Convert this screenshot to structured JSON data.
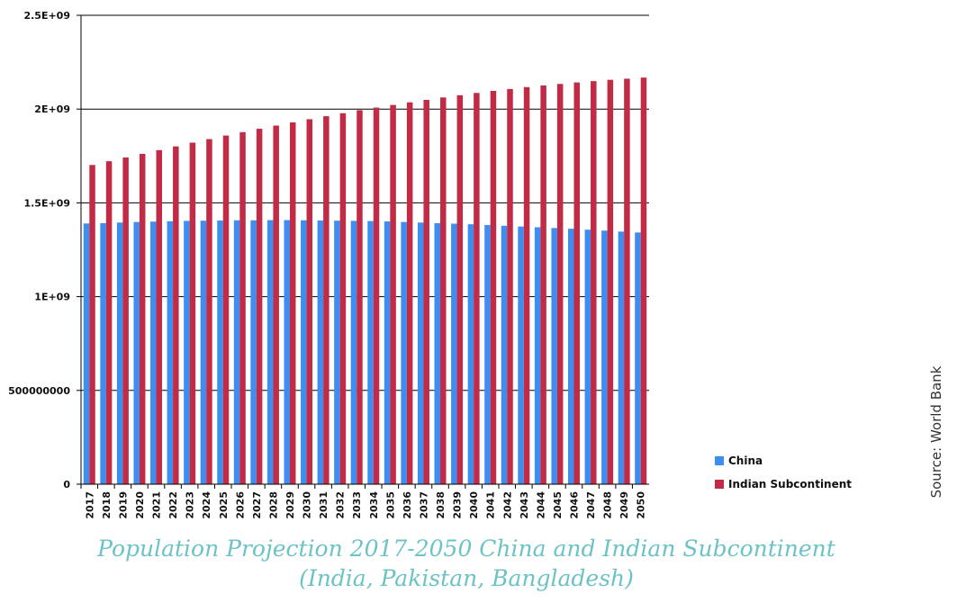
{
  "chart_data": {
    "type": "bar",
    "title": "Population Projection 2017-2050 China and Indian Subcontinent",
    "subtitle": "(India, Pakistan, Bangladesh)",
    "source": "Source: World Bank",
    "categories": [
      "2017",
      "2018",
      "2019",
      "2020",
      "2021",
      "2022",
      "2023",
      "2024",
      "2025",
      "2026",
      "2027",
      "2028",
      "2029",
      "2030",
      "2031",
      "2032",
      "2033",
      "2034",
      "2035",
      "2036",
      "2037",
      "2038",
      "2039",
      "2040",
      "2041",
      "2042",
      "2043",
      "2044",
      "2045",
      "2046",
      "2047",
      "2048",
      "2049",
      "2050"
    ],
    "series": [
      {
        "name": "China",
        "color": "#3d8ef0",
        "values": [
          1390000000,
          1392000000,
          1395000000,
          1398000000,
          1400000000,
          1402000000,
          1404000000,
          1405000000,
          1406000000,
          1407000000,
          1407000000,
          1408000000,
          1408000000,
          1407000000,
          1406000000,
          1405000000,
          1404000000,
          1403000000,
          1401000000,
          1398000000,
          1395000000,
          1392000000,
          1389000000,
          1386000000,
          1382000000,
          1378000000,
          1374000000,
          1370000000,
          1366000000,
          1362000000,
          1357000000,
          1352000000,
          1347000000,
          1342000000
        ]
      },
      {
        "name": "Indian Subcontinent",
        "color": "#c22b45",
        "values": [
          1702000000,
          1722000000,
          1742000000,
          1761000000,
          1781000000,
          1801000000,
          1821000000,
          1840000000,
          1859000000,
          1877000000,
          1895000000,
          1912000000,
          1929000000,
          1946000000,
          1962000000,
          1978000000,
          1994000000,
          2008000000,
          2022000000,
          2036000000,
          2049000000,
          2062000000,
          2074000000,
          2086000000,
          2097000000,
          2107000000,
          2117000000,
          2126000000,
          2134000000,
          2142000000,
          2149000000,
          2156000000,
          2162000000,
          2168000000
        ]
      }
    ],
    "y_ticks": [
      {
        "value": 0,
        "label": "0"
      },
      {
        "value": 500000000,
        "label": "500000000"
      },
      {
        "value": 1000000000,
        "label": "1E+09"
      },
      {
        "value": 1500000000,
        "label": "1.5E+09"
      },
      {
        "value": 2000000000,
        "label": "2E+09"
      },
      {
        "value": 2500000000,
        "label": "2.5E+09"
      }
    ],
    "ylim": [
      0,
      2500000000
    ],
    "xlabel": "",
    "ylabel": "",
    "grid": true,
    "legend_position": "right"
  }
}
